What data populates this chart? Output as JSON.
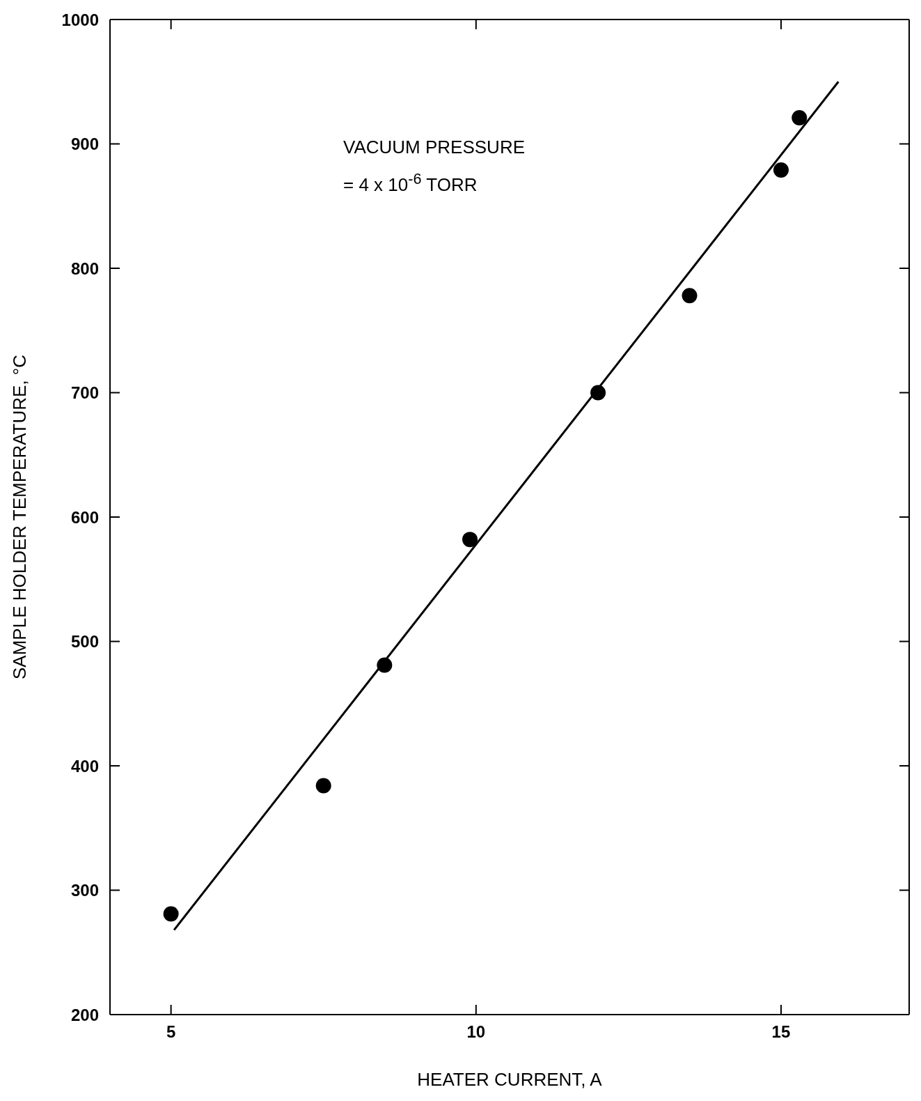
{
  "chart_data": {
    "type": "scatter",
    "xlabel": "HEATER CURRENT, A",
    "ylabel": "SAMPLE HOLDER TEMPERATURE, °C",
    "annotations": [
      "VACUUM PRESSURE",
      "= 4 x 10$^{-6}$ TORR"
    ],
    "xlim": [
      4,
      17.1
    ],
    "xticks": [
      5,
      10,
      15
    ],
    "ylim": [
      200,
      1000
    ],
    "yticks": [
      200,
      300,
      400,
      500,
      600,
      700,
      800,
      900,
      1000
    ],
    "series": [
      {
        "marker": "circle",
        "color": "#000000",
        "x": [
          5.0,
          7.5,
          8.5,
          9.9,
          12.0,
          13.5,
          15.0,
          15.3
        ],
        "values": [
          281,
          384,
          481,
          582,
          700,
          778,
          879,
          921
        ]
      },
      {
        "type": "line",
        "color": "#000000",
        "x": [
          5.05,
          15.94
        ],
        "values": [
          268,
          950
        ]
      }
    ]
  }
}
